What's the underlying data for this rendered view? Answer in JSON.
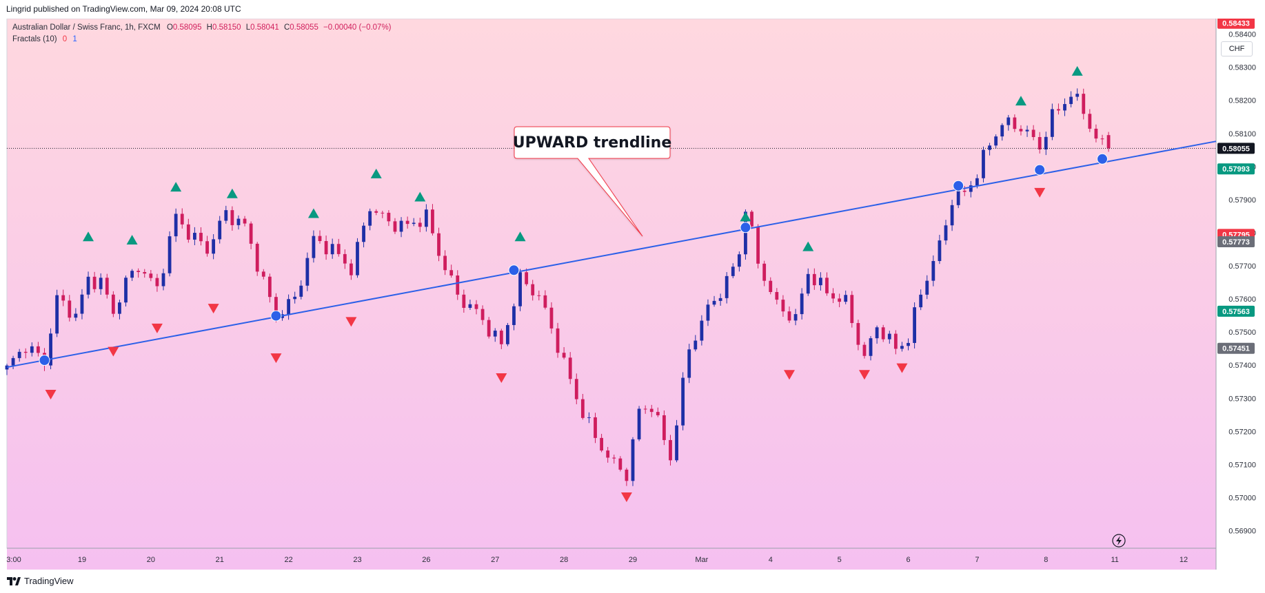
{
  "header": {
    "attribution": "Lingrid published on TradingView.com, Mar 09, 2024 20:08 UTC"
  },
  "legend": {
    "symbol": "Australian Dollar / Swiss Franc, 1h, FXCM",
    "open_label": "O",
    "open": "0.58095",
    "high_label": "H",
    "high": "0.58150",
    "low_label": "L",
    "low": "0.58041",
    "close_label": "C",
    "close": "0.58055",
    "change": "−0.00040 (−0.07%)",
    "indicator_name": "Fractals (10)",
    "indicator_val1": "0",
    "indicator_val2": "1"
  },
  "currency_button": "CHF",
  "annotation": {
    "text": "UPWARD trendline"
  },
  "footer": {
    "brand": "TradingView"
  },
  "colors": {
    "bg_top": "#ffd8df",
    "bg_bottom": "#f5c0f0",
    "bull": "#1e2fa6",
    "bear": "#cf1d5e",
    "trendline": "#2c60e8",
    "fractal_up": "#089981",
    "fractal_down": "#f23645",
    "badge_green": "#089981",
    "badge_red": "#f23645",
    "badge_gray": "#6b6e78",
    "badge_black": "#131722"
  },
  "chart_data": {
    "type": "candlestick",
    "symbol": "AUDCHF",
    "timeframe": "1h",
    "ylim": [
      0.56847,
      0.58447
    ],
    "y_ticks": [
      "0.58400",
      "0.58300",
      "0.58200",
      "0.58100",
      "0.58000",
      "0.57900",
      "0.57800",
      "0.57700",
      "0.57600",
      "0.57500",
      "0.57400",
      "0.57300",
      "0.57200",
      "0.57100",
      "0.57000",
      "0.56900"
    ],
    "y_tick_values": [
      0.584,
      0.583,
      0.582,
      0.581,
      0.58,
      0.579,
      0.578,
      0.577,
      0.576,
      0.575,
      0.574,
      0.573,
      0.572,
      0.571,
      0.57,
      0.569
    ],
    "x_tick_labels": [
      "3:00",
      "19",
      "20",
      "21",
      "22",
      "23",
      "26",
      "27",
      "28",
      "29",
      "Mar",
      "4",
      "5",
      "6",
      "7",
      "8",
      "11",
      "12"
    ],
    "x_tick_index": [
      0,
      12,
      23,
      34,
      45,
      56,
      67,
      78,
      89,
      100,
      111,
      122,
      133,
      144,
      155,
      166,
      177,
      188
    ],
    "price_badges": [
      {
        "label": "0.58433",
        "value": 0.58433,
        "kind": "red"
      },
      {
        "label": "0.58055",
        "value": 0.58055,
        "kind": "black"
      },
      {
        "label": "0.57993",
        "value": 0.57993,
        "kind": "green"
      },
      {
        "label": "0.57795",
        "value": 0.57795,
        "kind": "red"
      },
      {
        "label": "0.57773",
        "value": 0.57773,
        "kind": "gray"
      },
      {
        "label": "0.57563",
        "value": 0.57563,
        "kind": "green"
      },
      {
        "label": "0.57451",
        "value": 0.57451,
        "kind": "gray"
      }
    ],
    "current_price": 0.58055,
    "trendline": {
      "x1": 6,
      "y1": 0.57415,
      "x2": 173,
      "y2": 0.58005
    },
    "trendline_touches": [
      {
        "x": 6,
        "y": 0.57415
      },
      {
        "x": 43,
        "y": 0.57549
      },
      {
        "x": 81,
        "y": 0.57687
      },
      {
        "x": 118,
        "y": 0.57816
      },
      {
        "x": 152,
        "y": 0.57942
      },
      {
        "x": 165,
        "y": 0.5799
      },
      {
        "x": 175,
        "y": 0.58023
      }
    ],
    "fractals_up": [
      {
        "x": 13,
        "y": 0.5776
      },
      {
        "x": 20,
        "y": 0.5775
      },
      {
        "x": 27,
        "y": 0.5791
      },
      {
        "x": 36,
        "y": 0.5789
      },
      {
        "x": 49,
        "y": 0.5783
      },
      {
        "x": 59,
        "y": 0.5795
      },
      {
        "x": 66,
        "y": 0.5788
      },
      {
        "x": 82,
        "y": 0.5776
      },
      {
        "x": 118,
        "y": 0.5782
      },
      {
        "x": 128,
        "y": 0.5773
      },
      {
        "x": 162,
        "y": 0.5817
      },
      {
        "x": 171,
        "y": 0.5826
      }
    ],
    "fractals_down": [
      {
        "x": 7,
        "y": 0.5734
      },
      {
        "x": 17,
        "y": 0.5747
      },
      {
        "x": 24,
        "y": 0.5754
      },
      {
        "x": 33,
        "y": 0.576
      },
      {
        "x": 43,
        "y": 0.5745
      },
      {
        "x": 55,
        "y": 0.5756
      },
      {
        "x": 79,
        "y": 0.5739
      },
      {
        "x": 99,
        "y": 0.5703
      },
      {
        "x": 125,
        "y": 0.574
      },
      {
        "x": 137,
        "y": 0.574
      },
      {
        "x": 143,
        "y": 0.5742
      },
      {
        "x": 165,
        "y": 0.5795
      }
    ],
    "close_path": [
      [
        0,
        0.5739
      ],
      [
        3,
        0.5746
      ],
      [
        6,
        0.5741
      ],
      [
        8,
        0.576
      ],
      [
        11,
        0.5755
      ],
      [
        13,
        0.5766
      ],
      [
        15,
        0.5765
      ],
      [
        17,
        0.5756
      ],
      [
        19,
        0.5765
      ],
      [
        21,
        0.577
      ],
      [
        24,
        0.5763
      ],
      [
        27,
        0.5785
      ],
      [
        29,
        0.578
      ],
      [
        32,
        0.5775
      ],
      [
        35,
        0.5786
      ],
      [
        38,
        0.5782
      ],
      [
        41,
        0.5765
      ],
      [
        43,
        0.5755
      ],
      [
        46,
        0.576
      ],
      [
        49,
        0.5778
      ],
      [
        52,
        0.5775
      ],
      [
        55,
        0.5769
      ],
      [
        58,
        0.5788
      ],
      [
        61,
        0.5783
      ],
      [
        64,
        0.5782
      ],
      [
        67,
        0.5785
      ],
      [
        69,
        0.5774
      ],
      [
        72,
        0.5761
      ],
      [
        75,
        0.5756
      ],
      [
        79,
        0.5746
      ],
      [
        82,
        0.5766
      ],
      [
        85,
        0.5761
      ],
      [
        88,
        0.5746
      ],
      [
        91,
        0.573
      ],
      [
        94,
        0.5718
      ],
      [
        97,
        0.571
      ],
      [
        99,
        0.5707
      ],
      [
        101,
        0.5726
      ],
      [
        103,
        0.5728
      ],
      [
        106,
        0.5712
      ],
      [
        109,
        0.5745
      ],
      [
        112,
        0.5757
      ],
      [
        115,
        0.5765
      ],
      [
        117,
        0.5774
      ],
      [
        118,
        0.5788
      ],
      [
        120,
        0.5771
      ],
      [
        123,
        0.5758
      ],
      [
        126,
        0.5754
      ],
      [
        128,
        0.5768
      ],
      [
        131,
        0.5762
      ],
      [
        134,
        0.5759
      ],
      [
        137,
        0.5742
      ],
      [
        139,
        0.5752
      ],
      [
        142,
        0.5745
      ],
      [
        144,
        0.5748
      ],
      [
        146,
        0.5762
      ],
      [
        149,
        0.5776
      ],
      [
        151,
        0.579
      ],
      [
        153,
        0.5792
      ],
      [
        155,
        0.5798
      ],
      [
        157,
        0.5807
      ],
      [
        159,
        0.5813
      ],
      [
        162,
        0.5812
      ],
      [
        165,
        0.5806
      ],
      [
        167,
        0.5815
      ],
      [
        170,
        0.5822
      ],
      [
        172,
        0.5817
      ],
      [
        174,
        0.5808
      ],
      [
        176,
        0.58055
      ]
    ]
  }
}
